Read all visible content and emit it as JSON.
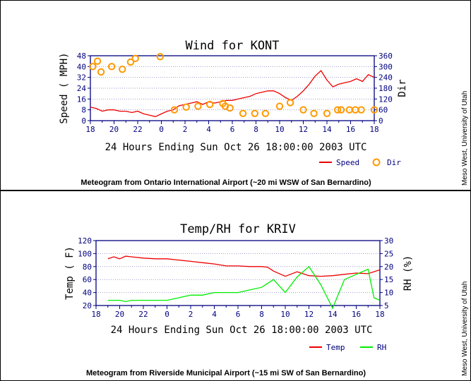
{
  "chart_data": [
    {
      "type": "line",
      "title": "Wind for KONT",
      "xlabel": "24 Hours Ending Sun Oct 26 18:00:00 2003 UTC",
      "ylabel": "Speed ( MPH)",
      "y2label": "Dir",
      "x_ticks": [
        "18",
        "20",
        "22",
        "0",
        "2",
        "4",
        "6",
        "8",
        "10",
        "12",
        "14",
        "16",
        "18"
      ],
      "xlim": [
        0,
        24
      ],
      "ylim": [
        0,
        48
      ],
      "y_ticks": [
        "0",
        "8",
        "16",
        "24",
        "32",
        "40",
        "48"
      ],
      "y2lim": [
        0,
        360
      ],
      "y2_ticks": [
        "0",
        "60",
        "120",
        "180",
        "240",
        "300",
        "360"
      ],
      "series": [
        {
          "name": "Speed",
          "axis": "left",
          "style": "line",
          "color": "#ee0000",
          "x": [
            0,
            0.5,
            1,
            1.5,
            2,
            2.5,
            3,
            3.5,
            4,
            4.5,
            5,
            5.5,
            6,
            6.5,
            7,
            7.5,
            8,
            8.5,
            9,
            9.5,
            10,
            10.5,
            11,
            11.5,
            12,
            12.5,
            13,
            13.5,
            14,
            14.5,
            15,
            15.5,
            16,
            16.5,
            17,
            17.5,
            18,
            18.5,
            19,
            19.5,
            20,
            20.5,
            21,
            21.5,
            22,
            22.5,
            23,
            23.5,
            24
          ],
          "values": [
            10,
            9,
            7,
            8,
            8,
            7,
            7,
            6,
            7,
            5,
            4,
            3,
            5,
            7,
            8,
            11,
            12,
            13,
            14,
            12,
            14,
            13,
            14,
            15,
            15,
            16,
            17,
            18,
            20,
            21,
            22,
            22,
            20,
            17,
            15,
            18,
            22,
            27,
            33,
            37,
            30,
            25,
            27,
            28,
            29,
            31,
            29,
            34,
            32
          ]
        },
        {
          "name": "Dir",
          "axis": "right",
          "style": "markers",
          "color": "#ff9900",
          "x": [
            0.2,
            0.6,
            0.9,
            1.8,
            2.7,
            3.4,
            3.8,
            5.9,
            7.1,
            8.1,
            9.1,
            10.1,
            11.2,
            11.4,
            11.8,
            12.9,
            13.9,
            14.8,
            16.0,
            16.9,
            18.0,
            18.9,
            20.0,
            20.9,
            21.2,
            21.9,
            22.4,
            22.9,
            24.0
          ],
          "values": [
            300,
            330,
            270,
            300,
            285,
            325,
            345,
            355,
            60,
            75,
            80,
            90,
            95,
            80,
            70,
            40,
            40,
            40,
            80,
            100,
            60,
            40,
            40,
            60,
            60,
            60,
            60,
            60,
            60
          ]
        }
      ]
    },
    {
      "type": "line",
      "title": "Temp/RH for KRIV",
      "xlabel": "24 Hours Ending Sun Oct 26 18:00:00 2003 UTC",
      "ylabel": "Temp ( F)",
      "y2label": "RH (%)",
      "x_ticks": [
        "18",
        "20",
        "22",
        "0",
        "2",
        "4",
        "6",
        "8",
        "10",
        "12",
        "14",
        "16",
        "18"
      ],
      "xlim": [
        0,
        24
      ],
      "ylim": [
        20,
        120
      ],
      "y_ticks": [
        "20",
        "40",
        "60",
        "80",
        "100",
        "120"
      ],
      "y2lim": [
        5,
        30
      ],
      "y2_ticks": [
        "5",
        "10",
        "15",
        "20",
        "25",
        "30"
      ],
      "series": [
        {
          "name": "Temp",
          "axis": "left",
          "color": "#ee0000",
          "x": [
            1,
            1.5,
            2,
            2.5,
            3,
            4,
            5,
            6,
            7,
            8,
            9,
            10,
            11,
            12,
            13,
            13.5,
            14,
            14.5,
            15,
            16,
            17,
            18,
            19,
            20,
            21,
            22,
            23,
            24
          ],
          "values": [
            92,
            95,
            92,
            96,
            95,
            93,
            92,
            92,
            90,
            88,
            86,
            84,
            81,
            81,
            80,
            80,
            80,
            79,
            73,
            65,
            72,
            66,
            65,
            66,
            68,
            70,
            69,
            75
          ],
          "values_tail": []
        },
        {
          "name": "RH",
          "axis": "right",
          "color": "#00ee00",
          "x": [
            1,
            2,
            2.5,
            3,
            4,
            5,
            6,
            7,
            8,
            9,
            10,
            11,
            12,
            13,
            14,
            15,
            16,
            17,
            18,
            19,
            20,
            21,
            22,
            23,
            23.5,
            24
          ],
          "values": [
            7,
            7,
            6.5,
            7,
            7,
            7,
            7,
            8,
            9,
            9,
            10,
            10,
            10,
            11,
            12,
            15,
            10,
            16,
            20,
            13,
            4,
            15,
            17,
            19,
            8,
            7
          ]
        }
      ]
    }
  ],
  "charts": {
    "wind": {
      "title": "Wind for KONT",
      "ylabel": "Speed ( MPH)",
      "y2label": "Dir",
      "xlabel": "24 Hours Ending Sun Oct 26 18:00:00 2003 UTC",
      "legend": [
        {
          "label": "Speed",
          "color": "#ee0000",
          "kind": "line"
        },
        {
          "label": "Dir",
          "color": "#ff9900",
          "kind": "circle"
        }
      ],
      "caption": "Meteogram from Ontario International Airport (~20 mi WSW of San Bernardino)"
    },
    "temp": {
      "title": "Temp/RH for KRIV",
      "ylabel": "Temp ( F)",
      "y2label": "RH (%)",
      "xlabel": "24 Hours Ending Sun Oct 26 18:00:00 2003 UTC",
      "legend": [
        {
          "label": "Temp",
          "color": "#ee0000",
          "kind": "line"
        },
        {
          "label": "RH",
          "color": "#00ee00",
          "kind": "line"
        }
      ],
      "caption": "Meteogram from Riverside Municipal Airport (~15 mi SW of San Bernardino)"
    }
  },
  "credit": "Meso West, University of Utah",
  "colors": {
    "axis": "#000080",
    "tick_text": "#000080",
    "speed": "#ee0000",
    "dir": "#ff9900",
    "temp": "#ee0000",
    "rh": "#00ee00"
  }
}
